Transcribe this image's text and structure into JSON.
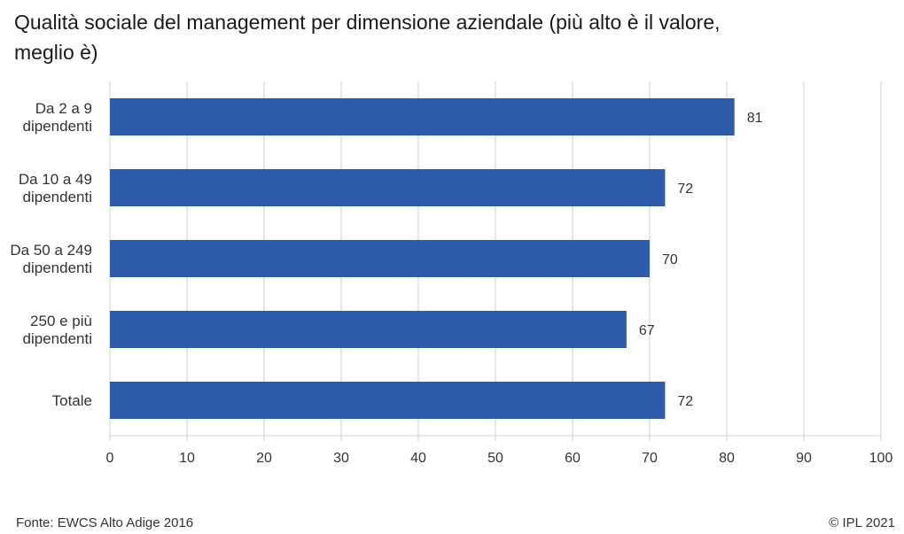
{
  "chart_data": {
    "type": "bar",
    "orientation": "horizontal",
    "title": "Qualità sociale del management per dimensione aziendale (più alto è il valore, meglio è)",
    "categories": [
      [
        "Da 2 a 9",
        "dipendenti"
      ],
      [
        "Da 10 a 49",
        "dipendenti"
      ],
      [
        "Da 50 a 249",
        "dipendenti"
      ],
      [
        "250 e più",
        "dipendenti"
      ],
      [
        "Totale"
      ]
    ],
    "values": [
      81,
      72,
      70,
      67,
      72
    ],
    "data_labels": [
      "81",
      "72",
      "70",
      "67",
      "72"
    ],
    "xlim": [
      0,
      100
    ],
    "xticks": [
      0,
      10,
      20,
      30,
      40,
      50,
      60,
      70,
      80,
      90,
      100
    ],
    "grid": true,
    "bar_color": "#2e5ca9",
    "grid_color": "#d0d0d0"
  },
  "footer": {
    "source": "Fonte: EWCS Alto Adige 2016",
    "copyright": "© IPL 2021"
  }
}
